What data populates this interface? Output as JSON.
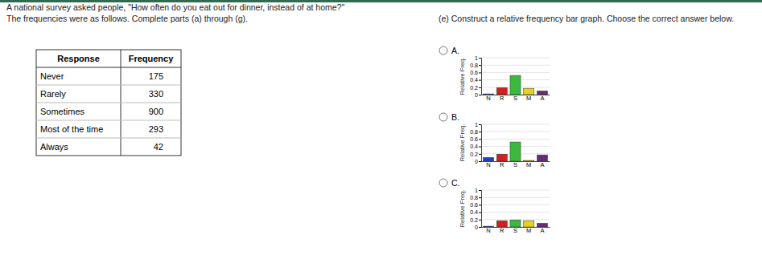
{
  "header": {
    "question": "A national survey asked people, \"How often do you eat out for dinner, instead of at home?\"",
    "instruction": "The frequencies were as follows. Complete parts (a) through (g)."
  },
  "part": {
    "text": "(e) Construct a relative frequency bar graph. Choose the correct answer below."
  },
  "table": {
    "columns": [
      "Response",
      "Frequency"
    ],
    "rows": [
      [
        "Never",
        175
      ],
      [
        "Rarely",
        330
      ],
      [
        "Sometimes",
        900
      ],
      [
        "Most of the time",
        293
      ],
      [
        "Always",
        42
      ]
    ]
  },
  "options": [
    "A.",
    "B.",
    "C."
  ],
  "chart_data": [
    {
      "type": "bar",
      "categories": [
        "N",
        "R",
        "S",
        "M",
        "A"
      ],
      "values": [
        0.02,
        0.19,
        0.52,
        0.17,
        0.1
      ],
      "colors": [
        "#1f3fbf",
        "#d02020",
        "#3cb83c",
        "#e8d020",
        "#6a2a7a"
      ],
      "ylabel": "Relative Freq.",
      "ylim": [
        0,
        1
      ],
      "yticks": [
        0,
        0.2,
        0.4,
        0.6,
        0.8,
        1
      ],
      "grid": true
    },
    {
      "type": "bar",
      "categories": [
        "N",
        "R",
        "S",
        "M",
        "A"
      ],
      "values": [
        0.1,
        0.19,
        0.52,
        0.02,
        0.17
      ],
      "colors": [
        "#1f3fbf",
        "#d02020",
        "#3cb83c",
        "#e8d020",
        "#6a2a7a"
      ],
      "ylabel": "Relative Freq.",
      "ylim": [
        0,
        1
      ],
      "yticks": [
        0,
        0.2,
        0.4,
        0.6,
        0.8,
        1
      ],
      "grid": true
    },
    {
      "type": "bar",
      "categories": [
        "N",
        "R",
        "S",
        "M",
        "A"
      ],
      "values": [
        0.02,
        0.17,
        0.19,
        0.17,
        0.1
      ],
      "colors": [
        "#1f3fbf",
        "#d02020",
        "#3cb83c",
        "#e8d020",
        "#6a2a7a"
      ],
      "ylabel": "Relative Freq.",
      "ylim": [
        0,
        1
      ],
      "yticks": [
        0,
        0.2,
        0.4,
        0.6,
        0.8,
        1
      ],
      "grid": true
    }
  ]
}
